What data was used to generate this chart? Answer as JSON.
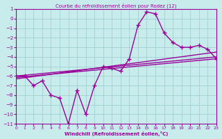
{
  "title": "Courbe du refroidissement éolien pour Rodez (12)",
  "xlabel": "Windchill (Refroidissement éolien,°C)",
  "background_color": "#c8ecec",
  "grid_color": "#a0d0d0",
  "line_color": "#990099",
  "xlim": [
    0,
    23
  ],
  "ylim": [
    -11,
    1
  ],
  "xticks": [
    0,
    1,
    2,
    3,
    4,
    5,
    6,
    7,
    8,
    9,
    10,
    11,
    12,
    13,
    14,
    15,
    16,
    17,
    18,
    19,
    20,
    21,
    22,
    23
  ],
  "yticks": [
    1,
    0,
    -1,
    -2,
    -3,
    -4,
    -5,
    -6,
    -7,
    -8,
    -9,
    -10,
    -11
  ],
  "main_x": [
    0,
    1,
    2,
    3,
    4,
    5,
    6,
    7,
    8,
    9,
    10,
    11,
    12,
    13,
    14,
    15,
    16,
    17,
    18,
    19,
    20,
    21,
    22,
    23
  ],
  "main_y": [
    -6.0,
    -6.0,
    -7.0,
    -6.5,
    -8.0,
    -8.3,
    -11.0,
    -7.5,
    -10.0,
    -7.0,
    -5.0,
    -5.2,
    -5.5,
    -4.2,
    -0.7,
    0.7,
    0.5,
    -1.5,
    -2.5,
    -3.0,
    -3.0,
    -2.8,
    -3.2,
    -4.2
  ],
  "line2_x": [
    0,
    23
  ],
  "line2_y": [
    -6.3,
    -3.5
  ],
  "line3_x": [
    0,
    23
  ],
  "line3_y": [
    -6.0,
    -4.0
  ],
  "line4_x": [
    0,
    23
  ],
  "line4_y": [
    -6.15,
    -4.2
  ],
  "marker": "+",
  "markersize": 5,
  "linewidth": 1.0
}
